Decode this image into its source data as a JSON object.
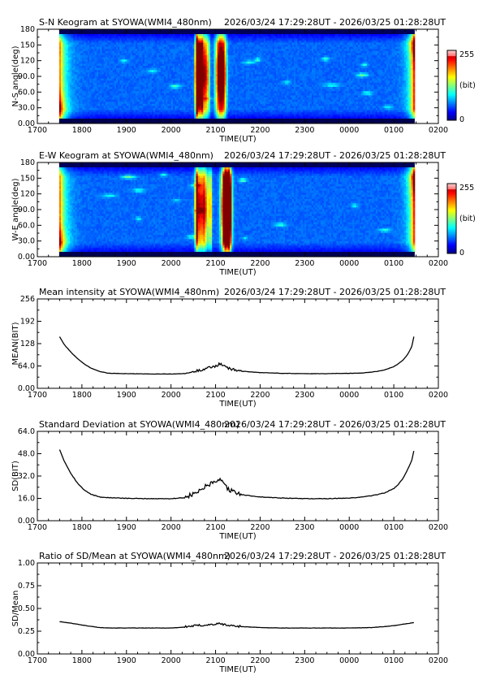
{
  "page": {
    "station": "SYOWA",
    "time_range": "2026/03/24 17:29:28UT - 2026/03/25 01:28:28UT"
  },
  "colorbar": {
    "max_label": "255",
    "unit_label": "(bit)",
    "min_label": "0"
  },
  "chart_data": [
    {
      "type": "heatmap",
      "title": "S-N Keogram at SYOWA(WMI4_480nm)",
      "time_range": "2026/03/24 17:29:28UT - 2026/03/25 01:28:28UT",
      "xlabel": "TIME(UT)",
      "ylabel": "N-S angle(deg)",
      "xticks": [
        "1700",
        "1800",
        "1900",
        "2000",
        "2100",
        "2200",
        "2300",
        "0000",
        "0100",
        "0200"
      ],
      "yticks": [
        "0.00",
        "30.0",
        "60.0",
        "90.0",
        "120",
        "150",
        "180"
      ],
      "xlim_hours": [
        17.0,
        26.0
      ],
      "ylim": [
        0,
        180
      ],
      "data_extent_hours": [
        17.49,
        25.47
      ],
      "color_range": [
        0,
        255
      ],
      "features": {
        "edge_brightening_start_hour": 17.5,
        "edge_brightening_end_hour": 25.45,
        "activity_hours": [
          20.6,
          21.3
        ],
        "background_level": 40
      }
    },
    {
      "type": "heatmap",
      "title": "E-W Keogram at SYOWA(WMI4_480nm)",
      "time_range": "2026/03/24 17:29:28UT - 2026/03/25 01:28:28UT",
      "xlabel": "TIME(UT)",
      "ylabel": "W-E angle(deg)",
      "xticks": [
        "1700",
        "1800",
        "1900",
        "2000",
        "2100",
        "2200",
        "2300",
        "0000",
        "0100",
        "0200"
      ],
      "yticks": [
        "0.00",
        "30.0",
        "60.0",
        "90.0",
        "120",
        "150",
        "180"
      ],
      "xlim_hours": [
        17.0,
        26.0
      ],
      "ylim": [
        0,
        180
      ],
      "data_extent_hours": [
        17.49,
        25.47
      ],
      "color_range": [
        0,
        255
      ],
      "features": {
        "edge_brightening_start_hour": 17.5,
        "edge_brightening_end_hour": 25.45,
        "activity_hours": [
          20.6,
          21.3
        ],
        "background_level": 40
      }
    },
    {
      "type": "line",
      "title": "Mean intensity at SYOWA(WMI4_480nm)",
      "time_range": "2026/03/24 17:29:28UT - 2026/03/25 01:28:28UT",
      "xlabel": "TIME(UT)",
      "ylabel": "MEAN(BIT)",
      "xticks": [
        "1700",
        "1800",
        "1900",
        "2000",
        "2100",
        "2200",
        "2300",
        "0000",
        "0100",
        "0200"
      ],
      "yticks": [
        "0.00",
        "64.0",
        "128",
        "192",
        "256"
      ],
      "xlim_hours": [
        17.0,
        26.0
      ],
      "ylim": [
        0,
        256
      ],
      "series": [
        {
          "x_hours": [
            17.5,
            17.6,
            17.75,
            17.9,
            18.05,
            18.2,
            18.4,
            18.6,
            19.0,
            19.5,
            20.0,
            20.3,
            20.5,
            20.6,
            20.7,
            20.8,
            20.9,
            21.0,
            21.05,
            21.1,
            21.2,
            21.3,
            21.5,
            22.0,
            22.5,
            23.0,
            23.5,
            24.0,
            24.3,
            24.6,
            24.8,
            25.0,
            25.1,
            25.2,
            25.3,
            25.4,
            25.45
          ],
          "values": [
            148,
            126,
            104,
            85,
            70,
            58,
            48,
            43,
            42,
            41,
            41,
            42,
            46,
            50,
            53,
            57,
            60,
            63,
            66,
            70,
            62,
            56,
            50,
            45,
            43,
            42,
            42,
            43,
            44,
            48,
            53,
            62,
            70,
            80,
            95,
            118,
            148
          ],
          "noise": 3.5,
          "noise_hours": [
            20.3,
            21.6
          ]
        }
      ]
    },
    {
      "type": "line",
      "title": "Standard Deviation at SYOWA(WMI4_480nm)",
      "time_range": "2026/03/24 17:29:28UT - 2026/03/25 01:28:28UT",
      "xlabel": "TIME(UT)",
      "ylabel": "SD(BIT)",
      "xticks": [
        "1700",
        "1800",
        "1900",
        "2000",
        "2100",
        "2200",
        "2300",
        "0000",
        "0100",
        "0200"
      ],
      "yticks": [
        "0.00",
        "16.0",
        "32.0",
        "48.0",
        "64.0"
      ],
      "xlim_hours": [
        17.0,
        26.0
      ],
      "ylim": [
        0,
        64
      ],
      "series": [
        {
          "x_hours": [
            17.5,
            17.6,
            17.75,
            17.9,
            18.05,
            18.2,
            18.4,
            18.6,
            19.0,
            19.5,
            20.0,
            20.3,
            20.5,
            20.6,
            20.7,
            20.8,
            20.9,
            21.0,
            21.05,
            21.1,
            21.2,
            21.3,
            21.5,
            22.0,
            22.5,
            23.0,
            23.5,
            24.0,
            24.3,
            24.6,
            24.8,
            25.0,
            25.1,
            25.2,
            25.3,
            25.4,
            25.45
          ],
          "values": [
            51,
            43,
            34,
            27,
            22,
            19,
            17,
            16.5,
            16,
            15.8,
            15.8,
            16.5,
            18.5,
            20.5,
            22,
            25,
            26,
            27,
            28,
            29,
            25,
            22,
            19,
            17,
            16.2,
            15.8,
            15.8,
            16.2,
            17,
            18.5,
            20,
            23,
            26,
            30,
            36,
            43,
            50
          ],
          "noise": 1.6,
          "noise_hours": [
            20.3,
            21.6
          ]
        }
      ]
    },
    {
      "type": "line",
      "title": "Ratio of SD/Mean at SYOWA(WMI4_480nm)",
      "time_range": "2026/03/24 17:29:28UT - 2026/03/25 01:28:28UT",
      "xlabel": "TIME(UT)",
      "ylabel": "SD/Mean",
      "xticks": [
        "1700",
        "1800",
        "1900",
        "2000",
        "2100",
        "2200",
        "2300",
        "0000",
        "0100",
        "0200"
      ],
      "yticks": [
        "0.00",
        "0.25",
        "0.50",
        "0.75",
        "1.00"
      ],
      "xlim_hours": [
        17.0,
        26.0
      ],
      "ylim": [
        0,
        1
      ],
      "series": [
        {
          "x_hours": [
            17.5,
            17.8,
            18.1,
            18.4,
            18.7,
            19.0,
            19.5,
            20.0,
            20.3,
            20.6,
            20.9,
            21.1,
            21.3,
            21.6,
            22.0,
            22.5,
            23.0,
            23.5,
            24.0,
            24.5,
            24.9,
            25.2,
            25.45
          ],
          "values": [
            0.355,
            0.335,
            0.31,
            0.29,
            0.285,
            0.285,
            0.285,
            0.285,
            0.295,
            0.31,
            0.32,
            0.33,
            0.31,
            0.3,
            0.29,
            0.285,
            0.285,
            0.285,
            0.285,
            0.29,
            0.305,
            0.325,
            0.345
          ],
          "noise": 0.012,
          "noise_hours": [
            20.3,
            21.6
          ]
        }
      ]
    }
  ]
}
